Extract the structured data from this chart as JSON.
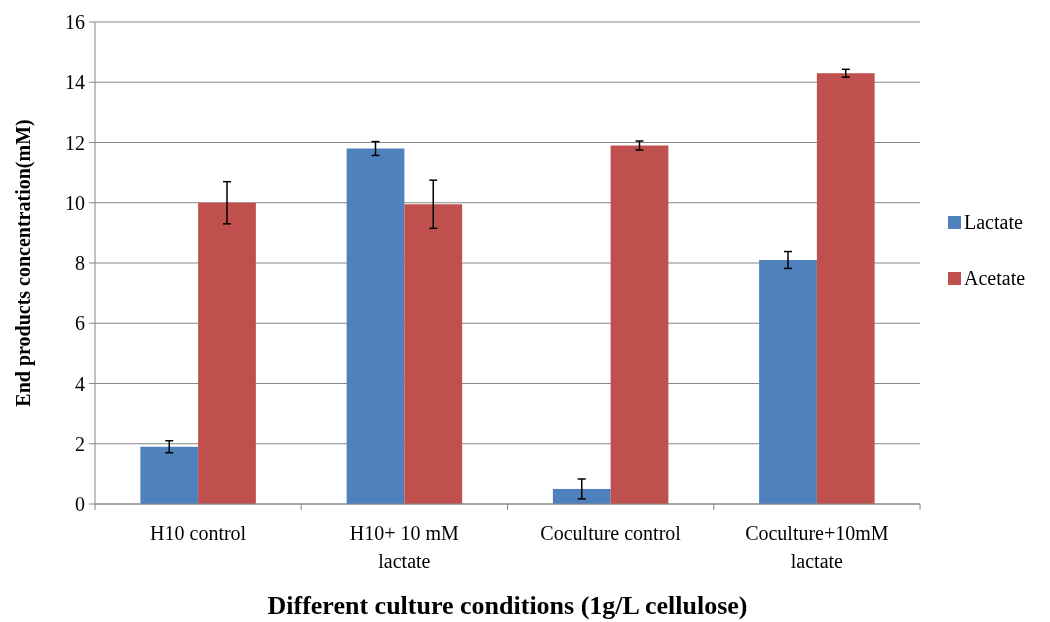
{
  "chart_data": {
    "type": "bar",
    "xlabel": "Different culture conditions (1g/L cellulose)",
    "ylabel": "End products concentration(mM)",
    "categories": [
      "H10 control",
      "H10+ 10 mM lactate",
      "Coculture control",
      "Coculture+10mM lactate"
    ],
    "series": [
      {
        "name": "Lactate",
        "color": "#4f81bd",
        "values": [
          1.9,
          11.8,
          0.5,
          8.1
        ],
        "errors": [
          0.2,
          0.23,
          0.33,
          0.28
        ]
      },
      {
        "name": "Acetate",
        "color": "#c0504d",
        "values": [
          10.0,
          9.95,
          11.9,
          14.3
        ],
        "errors": [
          0.7,
          0.8,
          0.15,
          0.13
        ]
      }
    ],
    "ylim": [
      0,
      16
    ],
    "yticks": [
      0,
      2,
      4,
      6,
      8,
      10,
      12,
      14,
      16
    ],
    "grid": "y",
    "legend": "right"
  }
}
